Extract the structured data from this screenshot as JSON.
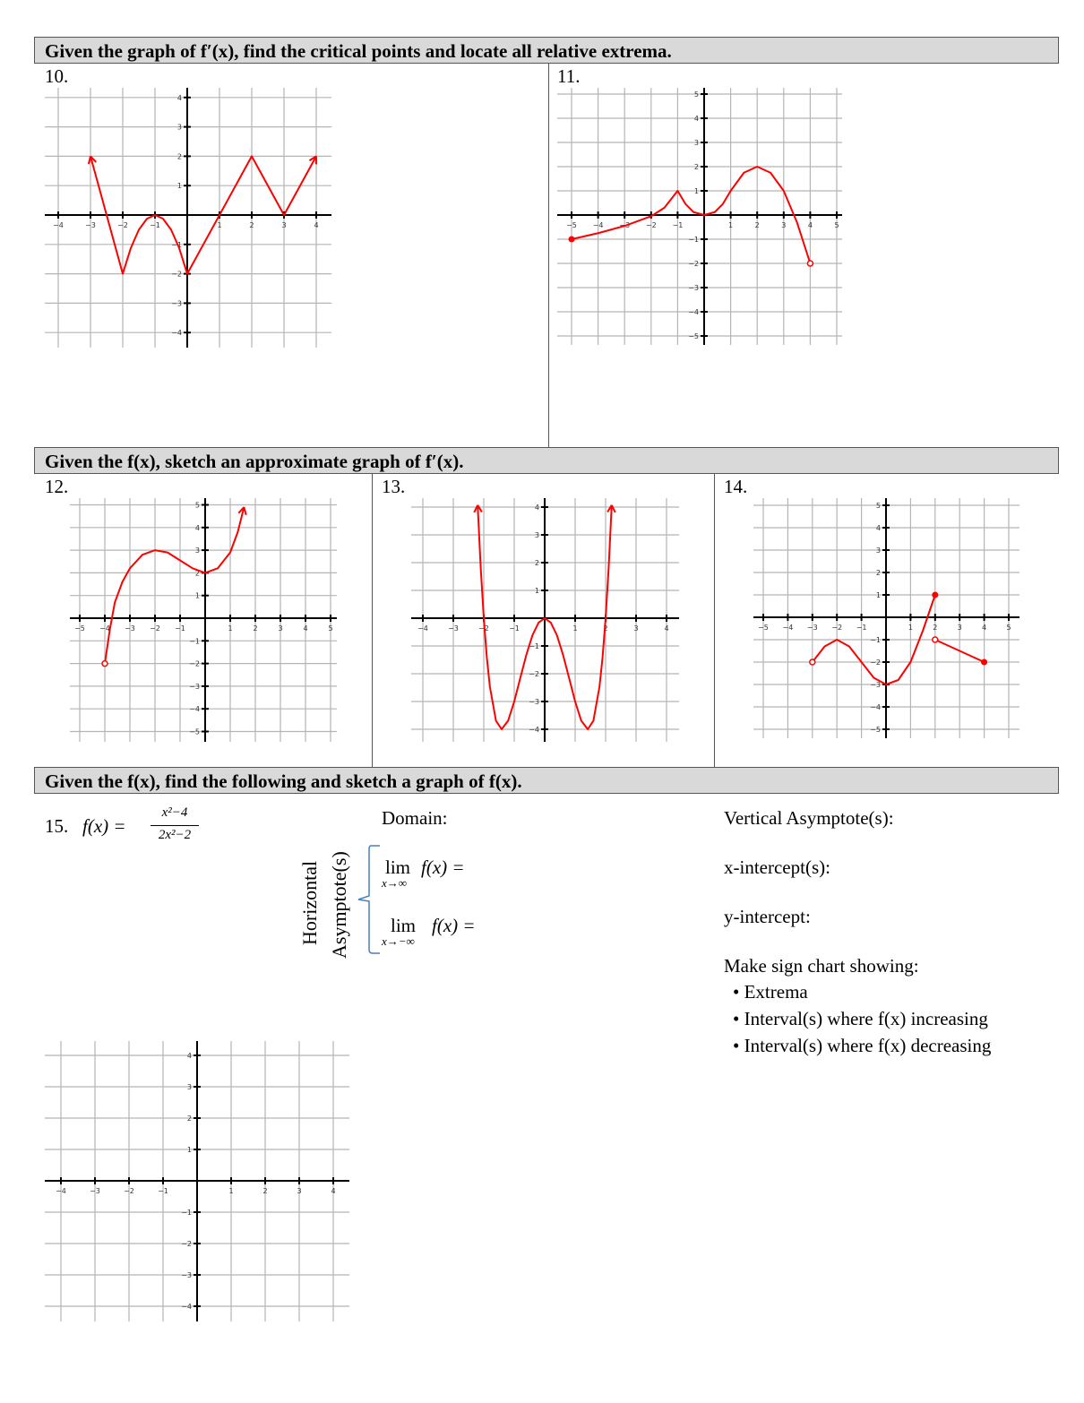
{
  "sections": [
    {
      "heading": "Given the graph of f′(x), find the critical points and locate all relative extrema."
    },
    {
      "heading": "Given the f(x), sketch an approximate graph of f′(x)."
    },
    {
      "heading": "Given the f(x), find the following and sketch a graph of f(x)."
    }
  ],
  "problems": {
    "p10": "10.",
    "p11": "11.",
    "p12": "12.",
    "p13": "13.",
    "p14": "14.",
    "p15": "15."
  },
  "problem15": {
    "function_lhs": "f(x) =",
    "numerator": "x²−4",
    "denominator": "2x²−2",
    "domain_label": "Domain:",
    "vertical_asymptote_label": "Vertical Asymptote(s):",
    "x_intercept_label": "x-intercept(s):",
    "y_intercept_label": "y-intercept:",
    "horizontal_label_1": "Horizontal",
    "horizontal_label_2": "Asymptote(s)",
    "limit_pos": {
      "lim": "lim",
      "expr": "f(x) =",
      "sub": "x→∞"
    },
    "limit_neg": {
      "lim": "lim",
      "expr": "f(x) =",
      "sub": "x→−∞"
    },
    "sign_chart_label": "Make sign chart showing:",
    "bullets": [
      "• Extrema",
      "• Interval(s) where f(x) increasing",
      "• Interval(s) where f(x) decreasing"
    ]
  },
  "colors": {
    "curve": "#ff0000",
    "grid": "#b5b5b5",
    "axis": "#000000",
    "brace": "#4a7ebb",
    "bar": "#d9d9d9"
  },
  "graphs": [
    {
      "id": "g10",
      "x_ticks": [
        -4,
        -3,
        -2,
        -1,
        1,
        2,
        3,
        4
      ],
      "y_ticks": [
        -4,
        -3,
        -2,
        -1,
        1,
        2,
        3,
        4
      ],
      "curves": [
        {
          "points": [
            [
              4,
              2
            ],
            [
              3,
              0
            ],
            [
              2,
              2
            ],
            [
              0,
              -2
            ],
            [
              -0.25,
              -1.125
            ],
            [
              -0.5,
              -0.5
            ],
            [
              -0.75,
              -0.125
            ],
            [
              -1,
              0
            ],
            [
              -1.25,
              -0.125
            ],
            [
              -1.5,
              -0.5
            ],
            [
              -1.75,
              -1.125
            ],
            [
              -2,
              -2
            ],
            [
              -3,
              2
            ]
          ],
          "start": "arrow",
          "end": "arrow"
        }
      ]
    },
    {
      "id": "g11",
      "x_ticks": [
        -5,
        -4,
        -3,
        -2,
        -1,
        1,
        2,
        3,
        4,
        5
      ],
      "y_ticks": [
        -5,
        -4,
        -3,
        -2,
        -1,
        1,
        2,
        3,
        4,
        5
      ],
      "curves": [
        {
          "points": [
            [
              -5,
              -1
            ],
            [
              -4,
              -0.75
            ],
            [
              -3,
              -0.45
            ],
            [
              -2,
              -0.05
            ],
            [
              -1.5,
              0.3
            ],
            [
              -1,
              1
            ],
            [
              -0.7,
              0.45
            ],
            [
              -0.4,
              0.12
            ],
            [
              0,
              0
            ],
            [
              0.4,
              0.12
            ],
            [
              0.7,
              0.45
            ],
            [
              1,
              1
            ],
            [
              1.5,
              1.75
            ],
            [
              2,
              2
            ],
            [
              2.5,
              1.75
            ],
            [
              3,
              1
            ],
            [
              3.5,
              -0.3
            ],
            [
              4,
              -2
            ]
          ],
          "start": "closed",
          "end": "open"
        }
      ]
    },
    {
      "id": "g12",
      "x_ticks": [
        -5,
        -4,
        -3,
        -2,
        -1,
        1,
        2,
        3,
        4,
        5
      ],
      "y_ticks": [
        -5,
        -4,
        -3,
        -2,
        -1,
        1,
        2,
        3,
        4,
        5
      ],
      "curves": [
        {
          "points": [
            [
              -4,
              -2
            ],
            [
              -3.8,
              -0.5
            ],
            [
              -3.6,
              0.7
            ],
            [
              -3.3,
              1.6
            ],
            [
              -3,
              2.2
            ],
            [
              -2.5,
              2.8
            ],
            [
              -2,
              3
            ],
            [
              -1.5,
              2.9
            ],
            [
              -1,
              2.55
            ],
            [
              -0.5,
              2.2
            ],
            [
              0,
              2
            ],
            [
              0.5,
              2.2
            ],
            [
              1,
              2.9
            ],
            [
              1.3,
              3.8
            ],
            [
              1.55,
              4.9
            ]
          ],
          "start": "open",
          "end": "arrow"
        }
      ]
    },
    {
      "id": "g13",
      "x_ticks": [
        -4,
        -3,
        -2,
        -1,
        1,
        2,
        3,
        4
      ],
      "y_ticks": [
        -4,
        -3,
        -2,
        -1,
        1,
        2,
        3,
        4
      ],
      "curves": [
        {
          "points": [
            [
              -2.2,
              4.07
            ],
            [
              -2.1,
              1.81
            ],
            [
              -2,
              0
            ],
            [
              -1.9,
              -1.41
            ],
            [
              -1.8,
              -2.46
            ],
            [
              -1.6,
              -3.69
            ],
            [
              -1.414,
              -4
            ],
            [
              -1.2,
              -3.69
            ],
            [
              -1,
              -3
            ],
            [
              -0.8,
              -2.15
            ],
            [
              -0.6,
              -1.31
            ],
            [
              -0.4,
              -0.61
            ],
            [
              -0.2,
              -0.16
            ],
            [
              0,
              0
            ],
            [
              0.2,
              -0.16
            ],
            [
              0.4,
              -0.61
            ],
            [
              0.6,
              -1.31
            ],
            [
              0.8,
              -2.15
            ],
            [
              1,
              -3
            ],
            [
              1.2,
              -3.69
            ],
            [
              1.414,
              -4
            ],
            [
              1.6,
              -3.69
            ],
            [
              1.8,
              -2.46
            ],
            [
              1.9,
              -1.41
            ],
            [
              2,
              0
            ],
            [
              2.1,
              1.81
            ],
            [
              2.2,
              4.07
            ]
          ],
          "start": "arrow",
          "end": "arrow"
        }
      ]
    },
    {
      "id": "g14",
      "x_ticks": [
        -5,
        -4,
        -3,
        -2,
        -1,
        1,
        2,
        3,
        4,
        5
      ],
      "y_ticks": [
        -5,
        -4,
        -3,
        -2,
        -1,
        1,
        2,
        3,
        4,
        5
      ],
      "curves": [
        {
          "points": [
            [
              -3,
              -2
            ],
            [
              -2.5,
              -1.3
            ],
            [
              -2,
              -1
            ],
            [
              -1.5,
              -1.3
            ],
            [
              -1,
              -2
            ],
            [
              -0.5,
              -2.7
            ],
            [
              0,
              -3
            ],
            [
              0.5,
              -2.8
            ],
            [
              1,
              -2
            ],
            [
              1.5,
              -0.6
            ],
            [
              2,
              1
            ]
          ],
          "start": "open",
          "end": "closed"
        },
        {
          "points": [
            [
              2,
              -1
            ],
            [
              4,
              -2
            ]
          ],
          "start": "open",
          "end": "closed"
        }
      ]
    },
    {
      "id": "g15",
      "x_ticks": [
        -4,
        -3,
        -2,
        -1,
        1,
        2,
        3,
        4
      ],
      "y_ticks": [
        -4,
        -3,
        -2,
        -1,
        1,
        2,
        3,
        4
      ],
      "curves": []
    }
  ]
}
